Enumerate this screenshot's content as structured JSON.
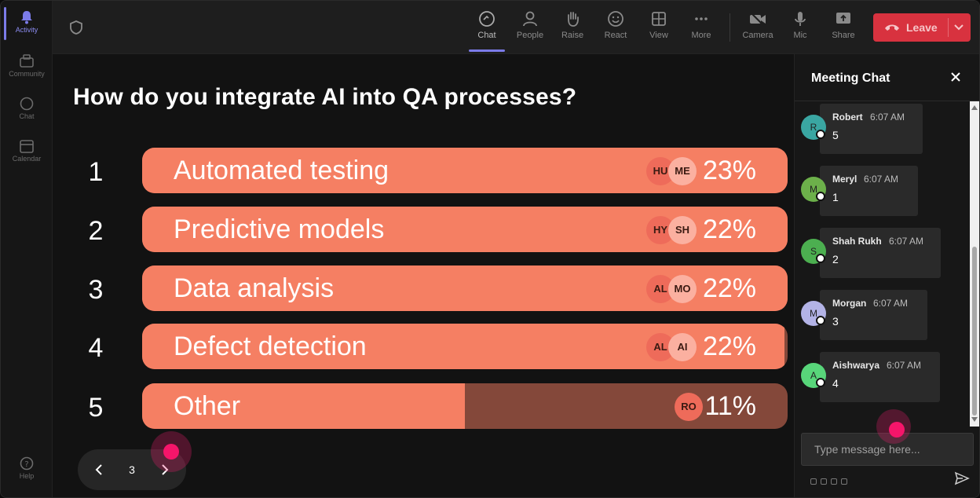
{
  "rail": {
    "items": [
      {
        "label": "Activity",
        "icon": "bell-icon"
      },
      {
        "label": "Community",
        "icon": "community-icon"
      },
      {
        "label": "Chat",
        "icon": "chat-icon"
      },
      {
        "label": "Calendar",
        "icon": "calendar-icon"
      }
    ],
    "help": {
      "label": "Help",
      "icon": "help-icon"
    }
  },
  "toolbar": {
    "buttons": [
      {
        "label": "Chat",
        "icon": "chat-icon"
      },
      {
        "label": "People",
        "icon": "people-icon"
      },
      {
        "label": "Raise",
        "icon": "raise-hand-icon"
      },
      {
        "label": "React",
        "icon": "react-icon"
      },
      {
        "label": "View",
        "icon": "view-grid-icon"
      },
      {
        "label": "More",
        "icon": "more-icon"
      },
      {
        "label": "Camera",
        "icon": "camera-off-icon"
      },
      {
        "label": "Mic",
        "icon": "mic-icon"
      },
      {
        "label": "Share",
        "icon": "share-icon"
      }
    ],
    "leave_label": "Leave"
  },
  "poll": {
    "question": "How do you integrate AI into QA processes?",
    "options": [
      {
        "num": "1",
        "label": "Automated testing",
        "percent": "23%",
        "fill": 1.0,
        "avatars": [
          "HU",
          "ME"
        ]
      },
      {
        "num": "2",
        "label": "Predictive models",
        "percent": "22%",
        "fill": 1.0,
        "avatars": [
          "HY",
          "SH"
        ]
      },
      {
        "num": "3",
        "label": "Data analysis",
        "percent": "22%",
        "fill": 1.0,
        "avatars": [
          "AL",
          "MO"
        ]
      },
      {
        "num": "4",
        "label": "Defect detection",
        "percent": "22%",
        "fill": 0.995,
        "avatars": [
          "AL",
          "AI"
        ]
      },
      {
        "num": "5",
        "label": "Other",
        "percent": "11%",
        "fill": 0.5,
        "avatars": [
          "RO"
        ]
      }
    ],
    "page": "3"
  },
  "chat": {
    "title": "Meeting Chat",
    "messages": [
      {
        "initial": "R",
        "name": "Robert",
        "time": "6:07 AM",
        "text": "5",
        "color": "#3aa6a2"
      },
      {
        "initial": "M",
        "name": "Meryl",
        "time": "6:07 AM",
        "text": "1",
        "color": "#6cb04a"
      },
      {
        "initial": "S",
        "name": "Shah Rukh",
        "time": "6:07 AM",
        "text": "2",
        "color": "#4caf50"
      },
      {
        "initial": "M",
        "name": "Morgan",
        "time": "6:07 AM",
        "text": "3",
        "color": "#b3b3e6"
      },
      {
        "initial": "A",
        "name": "Aishwarya",
        "time": "6:07 AM",
        "text": "4",
        "color": "#58d67a"
      }
    ],
    "input_placeholder": "Type message here..."
  },
  "colors": {
    "bar_fill": "#f57f63",
    "bar_track": "#84483a",
    "leave": "#d8323f",
    "accent": "#7b7be8"
  }
}
